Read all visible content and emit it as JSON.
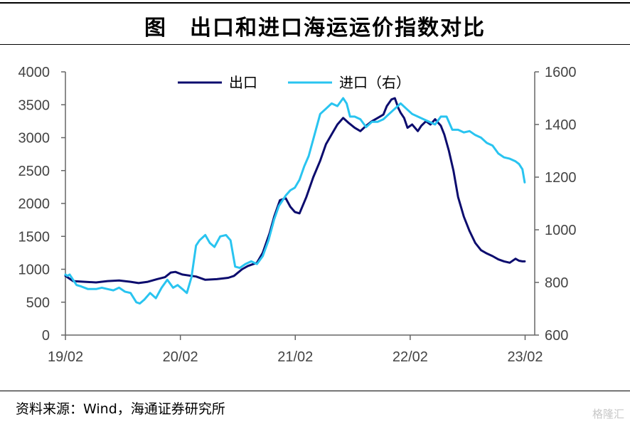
{
  "title": "图　出口和进口海运运价指数对比",
  "source": "资料来源：Wind，海通证券研究所",
  "watermark": "格隆汇",
  "chart_data": {
    "type": "line",
    "x_ticks": [
      "19/02",
      "20/02",
      "21/02",
      "22/02",
      "23/02"
    ],
    "x_range": [
      2019.083,
      2023.167
    ],
    "y_left": {
      "ticks": [
        0,
        500,
        1000,
        1500,
        2000,
        2500,
        3000,
        3500,
        4000
      ],
      "ylim": [
        0,
        4000
      ]
    },
    "y_right": {
      "ticks": [
        600,
        800,
        1000,
        1200,
        1400,
        1600
      ],
      "ylim": [
        600,
        1600
      ]
    },
    "grid": false,
    "legend_position": "top",
    "series": [
      {
        "name": "出口",
        "axis": "left",
        "color": "#0c0c6e",
        "x": [
          2019.083,
          2019.15,
          2019.25,
          2019.35,
          2019.45,
          2019.55,
          2019.65,
          2019.72,
          2019.8,
          2019.88,
          2019.95,
          2020.0,
          2020.04,
          2020.1,
          2020.18,
          2020.22,
          2020.3,
          2020.4,
          2020.5,
          2020.55,
          2020.62,
          2020.67,
          2020.72,
          2020.75,
          2020.8,
          2020.86,
          2020.9,
          2020.95,
          2021.0,
          2021.04,
          2021.08,
          2021.12,
          2021.18,
          2021.24,
          2021.3,
          2021.35,
          2021.4,
          2021.45,
          2021.5,
          2021.55,
          2021.6,
          2021.65,
          2021.7,
          2021.75,
          2021.8,
          2021.85,
          2021.88,
          2021.92,
          2021.95,
          2021.98,
          2022.0,
          2022.03,
          2022.06,
          2022.1,
          2022.15,
          2022.18,
          2022.22,
          2022.26,
          2022.3,
          2022.35,
          2022.38,
          2022.42,
          2022.46,
          2022.5,
          2022.55,
          2022.6,
          2022.65,
          2022.7,
          2022.75,
          2022.8,
          2022.85,
          2022.9,
          2022.95,
          2023.0,
          2023.03,
          2023.06,
          2023.08
        ],
        "y": [
          900,
          820,
          810,
          800,
          820,
          830,
          810,
          790,
          810,
          850,
          880,
          950,
          960,
          920,
          900,
          890,
          840,
          850,
          870,
          900,
          1000,
          1050,
          1080,
          1100,
          1250,
          1550,
          1800,
          2050,
          2080,
          1950,
          1870,
          1850,
          2100,
          2400,
          2650,
          2900,
          3050,
          3200,
          3300,
          3220,
          3150,
          3100,
          3180,
          3250,
          3300,
          3350,
          3480,
          3580,
          3600,
          3450,
          3380,
          3300,
          3150,
          3200,
          3100,
          3180,
          3250,
          3200,
          3280,
          3180,
          3050,
          2800,
          2500,
          2100,
          1800,
          1580,
          1400,
          1290,
          1240,
          1200,
          1150,
          1120,
          1100,
          1160,
          1130,
          1120,
          1120
        ]
      },
      {
        "name": "进口（右）",
        "axis": "right",
        "color": "#29c4f0",
        "x": [
          2019.083,
          2019.1,
          2019.12,
          2019.15,
          2019.18,
          2019.22,
          2019.28,
          2019.35,
          2019.4,
          2019.45,
          2019.5,
          2019.55,
          2019.6,
          2019.65,
          2019.7,
          2019.73,
          2019.77,
          2019.82,
          2019.87,
          2019.92,
          2019.97,
          2020.02,
          2020.06,
          2020.1,
          2020.14,
          2020.18,
          2020.2,
          2020.22,
          2020.25,
          2020.3,
          2020.34,
          2020.38,
          2020.43,
          2020.48,
          2020.52,
          2020.56,
          2020.6,
          2020.65,
          2020.7,
          2020.75,
          2020.8,
          2020.85,
          2020.9,
          2020.94,
          2020.97,
          2021.0,
          2021.04,
          2021.08,
          2021.12,
          2021.16,
          2021.2,
          2021.25,
          2021.3,
          2021.35,
          2021.4,
          2021.45,
          2021.5,
          2021.53,
          2021.56,
          2021.6,
          2021.65,
          2021.7,
          2021.75,
          2021.8,
          2021.85,
          2021.9,
          2021.95,
          2022.0,
          2022.05,
          2022.1,
          2022.15,
          2022.2,
          2022.25,
          2022.3,
          2022.35,
          2022.4,
          2022.45,
          2022.5,
          2022.55,
          2022.6,
          2022.65,
          2022.7,
          2022.75,
          2022.8,
          2022.85,
          2022.9,
          2022.95,
          2023.0,
          2023.03,
          2023.06,
          2023.08
        ],
        "y": [
          830,
          825,
          830,
          810,
          790,
          785,
          775,
          775,
          780,
          775,
          770,
          780,
          765,
          760,
          725,
          720,
          735,
          760,
          740,
          780,
          810,
          780,
          790,
          775,
          760,
          820,
          880,
          940,
          960,
          980,
          950,
          935,
          975,
          980,
          960,
          860,
          855,
          870,
          880,
          870,
          900,
          960,
          1040,
          1090,
          1110,
          1130,
          1150,
          1160,
          1190,
          1240,
          1280,
          1360,
          1440,
          1460,
          1480,
          1470,
          1500,
          1480,
          1430,
          1430,
          1420,
          1390,
          1410,
          1410,
          1420,
          1440,
          1460,
          1480,
          1460,
          1440,
          1430,
          1420,
          1410,
          1400,
          1430,
          1430,
          1380,
          1380,
          1370,
          1375,
          1360,
          1350,
          1330,
          1320,
          1290,
          1275,
          1270,
          1260,
          1250,
          1230,
          1180
        ]
      }
    ]
  }
}
